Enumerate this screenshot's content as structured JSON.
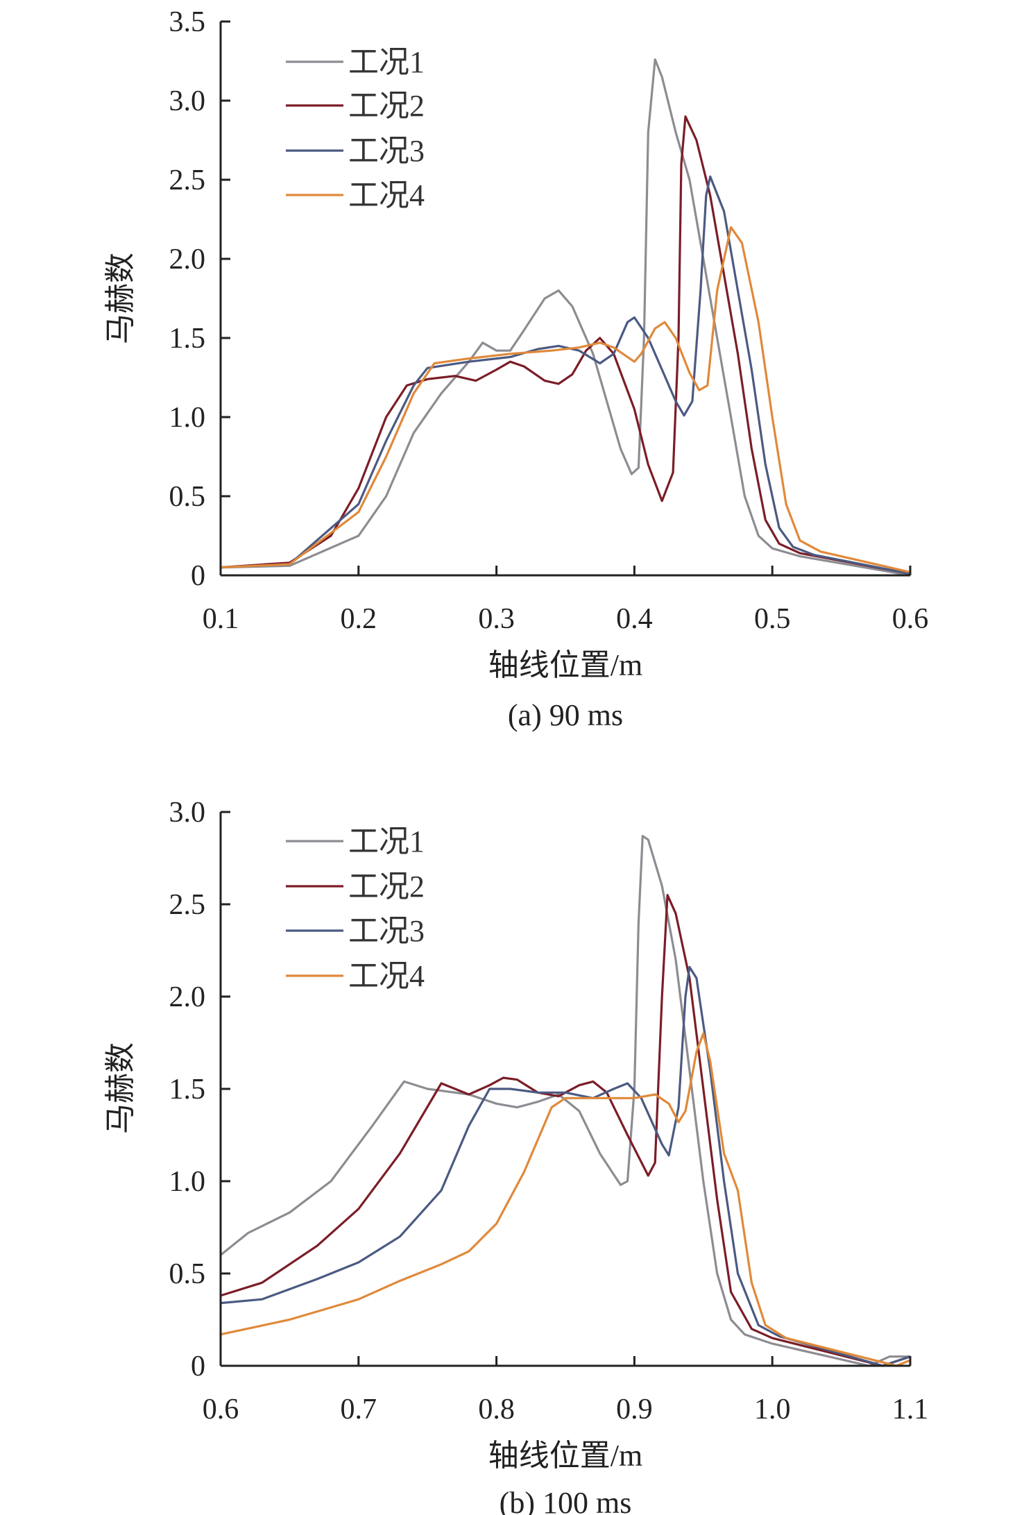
{
  "colors": {
    "s1": "#8c8c92",
    "s2": "#7b1d27",
    "s3": "#4b5a82",
    "s4": "#e0893a",
    "axis": "#222222"
  },
  "chart_data": [
    {
      "type": "line",
      "caption": "(a) 90 ms",
      "xlabel": "轴线位置/m",
      "ylabel": "马赫数",
      "xlim": [
        0.1,
        0.6
      ],
      "ylim": [
        0,
        3.5
      ],
      "xticks": [
        "0.1",
        "0.2",
        "0.3",
        "0.4",
        "0.5",
        "0.6"
      ],
      "yticks": [
        "0",
        "0.5",
        "1.0",
        "1.5",
        "2.0",
        "2.5",
        "3.0",
        "3.5"
      ],
      "grid": false,
      "legend": "top-left",
      "series": [
        {
          "name": "工况1",
          "x": [
            0.1,
            0.15,
            0.2,
            0.22,
            0.24,
            0.26,
            0.28,
            0.29,
            0.3,
            0.31,
            0.32,
            0.335,
            0.345,
            0.355,
            0.37,
            0.38,
            0.39,
            0.398,
            0.403,
            0.407,
            0.41,
            0.415,
            0.42,
            0.43,
            0.44,
            0.45,
            0.46,
            0.47,
            0.48,
            0.49,
            0.5,
            0.52,
            0.6
          ],
          "y": [
            0.05,
            0.06,
            0.25,
            0.5,
            0.9,
            1.15,
            1.35,
            1.47,
            1.42,
            1.42,
            1.55,
            1.75,
            1.8,
            1.7,
            1.4,
            1.1,
            0.8,
            0.64,
            0.68,
            1.5,
            2.8,
            3.26,
            3.15,
            2.8,
            2.5,
            2.0,
            1.5,
            1.0,
            0.5,
            0.25,
            0.17,
            0.12,
            0.0
          ]
        },
        {
          "name": "工况2",
          "x": [
            0.1,
            0.15,
            0.18,
            0.2,
            0.22,
            0.235,
            0.25,
            0.27,
            0.285,
            0.3,
            0.31,
            0.32,
            0.335,
            0.345,
            0.355,
            0.365,
            0.375,
            0.385,
            0.4,
            0.41,
            0.42,
            0.428,
            0.432,
            0.434,
            0.437,
            0.445,
            0.455,
            0.465,
            0.475,
            0.485,
            0.495,
            0.505,
            0.52,
            0.6
          ],
          "y": [
            0.05,
            0.08,
            0.25,
            0.55,
            1.0,
            1.2,
            1.24,
            1.26,
            1.23,
            1.3,
            1.35,
            1.32,
            1.23,
            1.21,
            1.27,
            1.42,
            1.5,
            1.4,
            1.05,
            0.7,
            0.47,
            0.65,
            1.5,
            2.6,
            2.9,
            2.75,
            2.4,
            1.9,
            1.4,
            0.8,
            0.35,
            0.2,
            0.14,
            0.01
          ]
        },
        {
          "name": "工况3",
          "x": [
            0.1,
            0.15,
            0.2,
            0.22,
            0.24,
            0.25,
            0.28,
            0.31,
            0.33,
            0.345,
            0.36,
            0.375,
            0.385,
            0.395,
            0.4,
            0.41,
            0.42,
            0.43,
            0.436,
            0.442,
            0.448,
            0.452,
            0.455,
            0.465,
            0.475,
            0.485,
            0.495,
            0.505,
            0.515,
            0.53,
            0.6
          ],
          "y": [
            0.05,
            0.07,
            0.45,
            0.85,
            1.2,
            1.31,
            1.35,
            1.38,
            1.43,
            1.45,
            1.42,
            1.34,
            1.4,
            1.6,
            1.63,
            1.5,
            1.3,
            1.1,
            1.01,
            1.1,
            1.8,
            2.4,
            2.52,
            2.3,
            1.8,
            1.3,
            0.7,
            0.3,
            0.18,
            0.13,
            0.01
          ]
        },
        {
          "name": "工况4",
          "x": [
            0.1,
            0.15,
            0.2,
            0.22,
            0.24,
            0.255,
            0.28,
            0.31,
            0.34,
            0.36,
            0.375,
            0.385,
            0.395,
            0.4,
            0.405,
            0.415,
            0.422,
            0.43,
            0.44,
            0.447,
            0.453,
            0.46,
            0.47,
            0.478,
            0.49,
            0.5,
            0.51,
            0.52,
            0.535,
            0.6
          ],
          "y": [
            0.05,
            0.07,
            0.4,
            0.75,
            1.15,
            1.34,
            1.37,
            1.4,
            1.42,
            1.44,
            1.47,
            1.44,
            1.38,
            1.35,
            1.4,
            1.56,
            1.6,
            1.5,
            1.28,
            1.17,
            1.2,
            1.8,
            2.2,
            2.1,
            1.6,
            1.0,
            0.45,
            0.22,
            0.15,
            0.02
          ]
        }
      ]
    },
    {
      "type": "line",
      "caption": "(b) 100 ms",
      "xlabel": "轴线位置/m",
      "ylabel": "马赫数",
      "xlim": [
        0.6,
        1.1
      ],
      "ylim": [
        0,
        3.0
      ],
      "xticks": [
        "0.6",
        "0.7",
        "0.8",
        "0.9",
        "1.0",
        "1.1"
      ],
      "yticks": [
        "0",
        "0.5",
        "1.0",
        "1.5",
        "2.0",
        "2.5",
        "3.0"
      ],
      "grid": false,
      "legend": "top-left",
      "series": [
        {
          "name": "工况1",
          "x": [
            0.6,
            0.62,
            0.65,
            0.68,
            0.71,
            0.733,
            0.75,
            0.78,
            0.8,
            0.815,
            0.83,
            0.845,
            0.86,
            0.875,
            0.89,
            0.895,
            0.9,
            0.903,
            0.906,
            0.91,
            0.92,
            0.93,
            0.94,
            0.95,
            0.96,
            0.97,
            0.98,
            1.0,
            1.07,
            1.085,
            1.1
          ],
          "y": [
            0.6,
            0.72,
            0.83,
            1.0,
            1.3,
            1.54,
            1.5,
            1.47,
            1.42,
            1.4,
            1.43,
            1.47,
            1.38,
            1.15,
            0.98,
            1.0,
            1.5,
            2.4,
            2.87,
            2.85,
            2.6,
            2.2,
            1.6,
            1.0,
            0.5,
            0.25,
            0.17,
            0.12,
            0.0,
            0.05,
            0.05
          ]
        },
        {
          "name": "工况2",
          "x": [
            0.6,
            0.63,
            0.67,
            0.7,
            0.73,
            0.76,
            0.78,
            0.795,
            0.805,
            0.815,
            0.83,
            0.845,
            0.86,
            0.87,
            0.88,
            0.895,
            0.91,
            0.915,
            0.92,
            0.924,
            0.93,
            0.94,
            0.95,
            0.96,
            0.97,
            0.985,
            1.0,
            1.08,
            1.1
          ],
          "y": [
            0.38,
            0.45,
            0.65,
            0.85,
            1.15,
            1.53,
            1.47,
            1.52,
            1.56,
            1.55,
            1.48,
            1.46,
            1.52,
            1.54,
            1.48,
            1.25,
            1.03,
            1.1,
            2.0,
            2.55,
            2.45,
            2.1,
            1.5,
            0.9,
            0.4,
            0.2,
            0.15,
            0.0,
            0.05
          ]
        },
        {
          "name": "工况3",
          "x": [
            0.6,
            0.63,
            0.67,
            0.7,
            0.73,
            0.76,
            0.78,
            0.795,
            0.81,
            0.83,
            0.85,
            0.87,
            0.885,
            0.895,
            0.905,
            0.92,
            0.925,
            0.932,
            0.937,
            0.94,
            0.945,
            0.955,
            0.965,
            0.975,
            0.99,
            1.005,
            1.08,
            1.1
          ],
          "y": [
            0.34,
            0.36,
            0.47,
            0.56,
            0.7,
            0.95,
            1.3,
            1.5,
            1.5,
            1.48,
            1.48,
            1.45,
            1.5,
            1.53,
            1.45,
            1.2,
            1.14,
            1.4,
            2.0,
            2.16,
            2.1,
            1.6,
            1.0,
            0.5,
            0.22,
            0.16,
            0.0,
            0.05
          ]
        },
        {
          "name": "工况4",
          "x": [
            0.6,
            0.65,
            0.7,
            0.73,
            0.76,
            0.78,
            0.8,
            0.82,
            0.84,
            0.85,
            0.87,
            0.9,
            0.915,
            0.925,
            0.932,
            0.937,
            0.945,
            0.95,
            0.955,
            0.965,
            0.975,
            0.985,
            0.995,
            1.01,
            1.09,
            1.1
          ],
          "y": [
            0.17,
            0.25,
            0.36,
            0.46,
            0.55,
            0.62,
            0.77,
            1.05,
            1.4,
            1.45,
            1.45,
            1.45,
            1.47,
            1.42,
            1.32,
            1.38,
            1.7,
            1.8,
            1.65,
            1.15,
            0.95,
            0.45,
            0.22,
            0.15,
            0.0,
            0.03
          ]
        }
      ]
    }
  ]
}
